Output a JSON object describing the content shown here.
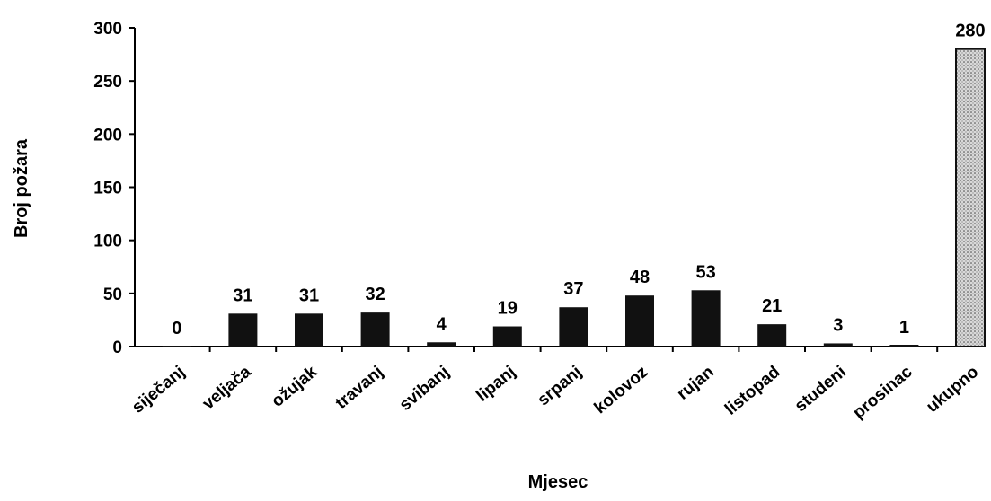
{
  "chart_data": {
    "type": "bar",
    "title": "",
    "xlabel": "Mjesec",
    "ylabel": "Broj požara",
    "ylim": [
      0,
      300
    ],
    "yticks": [
      0,
      50,
      100,
      150,
      200,
      250,
      300
    ],
    "categories": [
      "siječanj",
      "veljača",
      "ožujak",
      "travanj",
      "svibanj",
      "lipanj",
      "srpanj",
      "kolovoz",
      "rujan",
      "listopad",
      "studeni",
      "prosinac",
      "ukupno"
    ],
    "values": [
      0,
      31,
      31,
      32,
      4,
      19,
      37,
      48,
      53,
      21,
      3,
      1,
      280
    ],
    "data_labels": [
      "0",
      "31",
      "31",
      "32",
      "4",
      "19",
      "37",
      "48",
      "53",
      "21",
      "3",
      "1",
      "280"
    ],
    "grid": false,
    "legend": "none",
    "colors": {
      "bar": "#111111",
      "total_bar": "#cfcfcf",
      "axis": "#000000"
    }
  }
}
